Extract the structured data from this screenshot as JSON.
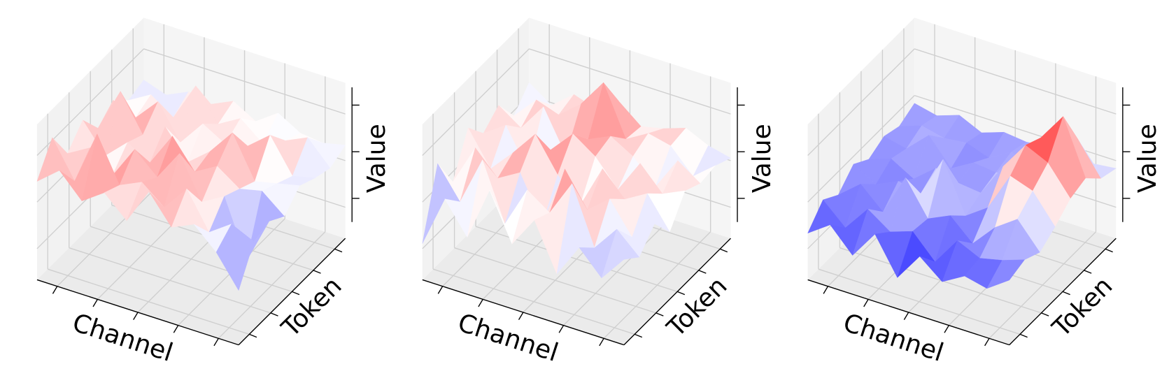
{
  "chart_data": [
    {
      "type": "surface3d",
      "x_label": "Channel",
      "y_label": "Token",
      "z_label": "Value",
      "zlim": [
        -3,
        3
      ],
      "colors": [
        "#0000ff",
        "#ffffff",
        "#ff0000"
      ],
      "z": [
        [
          0.8,
          1.5,
          0.6,
          1.2,
          0.4,
          1.8,
          0.7,
          1.1,
          0.3,
          -0.9
        ],
        [
          1.9,
          0.5,
          2.6,
          0.9,
          1.3,
          0.6,
          1.6,
          0.2,
          0.8,
          0.4
        ],
        [
          0.7,
          1.2,
          0.4,
          1.7,
          0.9,
          2.1,
          0.5,
          1.0,
          -1.2,
          0.6
        ],
        [
          1.4,
          0.3,
          1.1,
          0.6,
          1.9,
          0.8,
          1.3,
          0.7,
          0.9,
          0.2
        ],
        [
          0.5,
          2.2,
          0.8,
          1.4,
          0.3,
          1.0,
          2.0,
          0.4,
          0.6,
          0.8
        ],
        [
          1.0,
          0.6,
          1.5,
          0.2,
          1.2,
          0.7,
          0.9,
          1.6,
          0.3,
          0.5
        ],
        [
          0.4,
          0.9,
          0.3,
          1.8,
          0.6,
          1.1,
          0.4,
          0.8,
          1.2,
          0.3
        ],
        [
          0.6,
          0.3,
          0.7,
          0.5,
          0.9,
          0.4,
          1.0,
          0.5,
          0.4,
          0.6
        ]
      ]
    },
    {
      "type": "surface3d",
      "x_label": "Channel",
      "y_label": "Token",
      "z_label": "Value",
      "zlim": [
        -3,
        3
      ],
      "colors": [
        "#0000ff",
        "#ffffff",
        "#ff0000"
      ],
      "z": [
        [
          -1.6,
          0.4,
          -0.8,
          1.3,
          -0.5,
          0.7,
          -1.1,
          0.2,
          -0.7,
          0.3
        ],
        [
          0.9,
          -0.3,
          1.6,
          -0.6,
          1.0,
          0.4,
          1.8,
          -0.4,
          0.6,
          -0.2
        ],
        [
          -0.4,
          1.2,
          0.3,
          0.8,
          -0.9,
          1.5,
          0.2,
          0.9,
          -0.3,
          0.5
        ],
        [
          1.1,
          -0.2,
          0.7,
          1.7,
          0.4,
          -0.5,
          1.2,
          0.3,
          0.8,
          -0.4
        ],
        [
          0.3,
          0.9,
          -0.6,
          0.5,
          1.4,
          0.8,
          -0.2,
          1.1,
          0.2,
          0.6
        ],
        [
          0.8,
          0.2,
          1.3,
          -0.3,
          0.6,
          1.0,
          0.5,
          -0.4,
          0.9,
          0.3
        ],
        [
          -0.2,
          0.7,
          0.4,
          1.1,
          2.2,
          0.3,
          0.8,
          0.6,
          -0.3,
          0.4
        ],
        [
          0.5,
          -0.1,
          0.6,
          0.3,
          0.9,
          0.2,
          0.4,
          0.7,
          0.3,
          0.1
        ]
      ]
    },
    {
      "type": "surface3d",
      "x_label": "Channel",
      "y_label": "Token",
      "z_label": "Value",
      "zlim": [
        -3,
        3
      ],
      "colors": [
        "#0000ff",
        "#ffffff",
        "#ff0000"
      ],
      "z": [
        [
          -1.2,
          -0.6,
          -1.5,
          -0.4,
          -1.8,
          -0.7,
          -1.4,
          -0.9,
          -1.1,
          -0.5
        ],
        [
          -0.5,
          -1.3,
          -0.3,
          -0.9,
          -0.6,
          -1.5,
          -0.4,
          -0.8,
          -0.6,
          -0.3
        ],
        [
          -0.9,
          -0.2,
          -1.0,
          0.6,
          -0.7,
          -0.3,
          -1.1,
          -0.2,
          0.4,
          -0.6
        ],
        [
          -0.3,
          -0.8,
          -0.4,
          -0.6,
          1.0,
          -0.9,
          -0.3,
          1.2,
          0.9,
          -0.2
        ],
        [
          -0.7,
          -0.4,
          -0.9,
          -0.2,
          -0.5,
          -0.6,
          0.7,
          1.8,
          1.4,
          0.3
        ],
        [
          -0.4,
          -0.6,
          0.2,
          -0.8,
          -0.3,
          -0.4,
          -0.2,
          1.5,
          2.6,
          0.5
        ],
        [
          -0.6,
          -0.3,
          -0.5,
          -0.4,
          -0.7,
          -0.2,
          -0.5,
          0.8,
          1.1,
          -0.1
        ],
        [
          -0.3,
          -0.5,
          -0.2,
          -0.6,
          -0.3,
          -0.4,
          -0.3,
          -0.2,
          -0.4,
          -0.3
        ]
      ]
    }
  ]
}
